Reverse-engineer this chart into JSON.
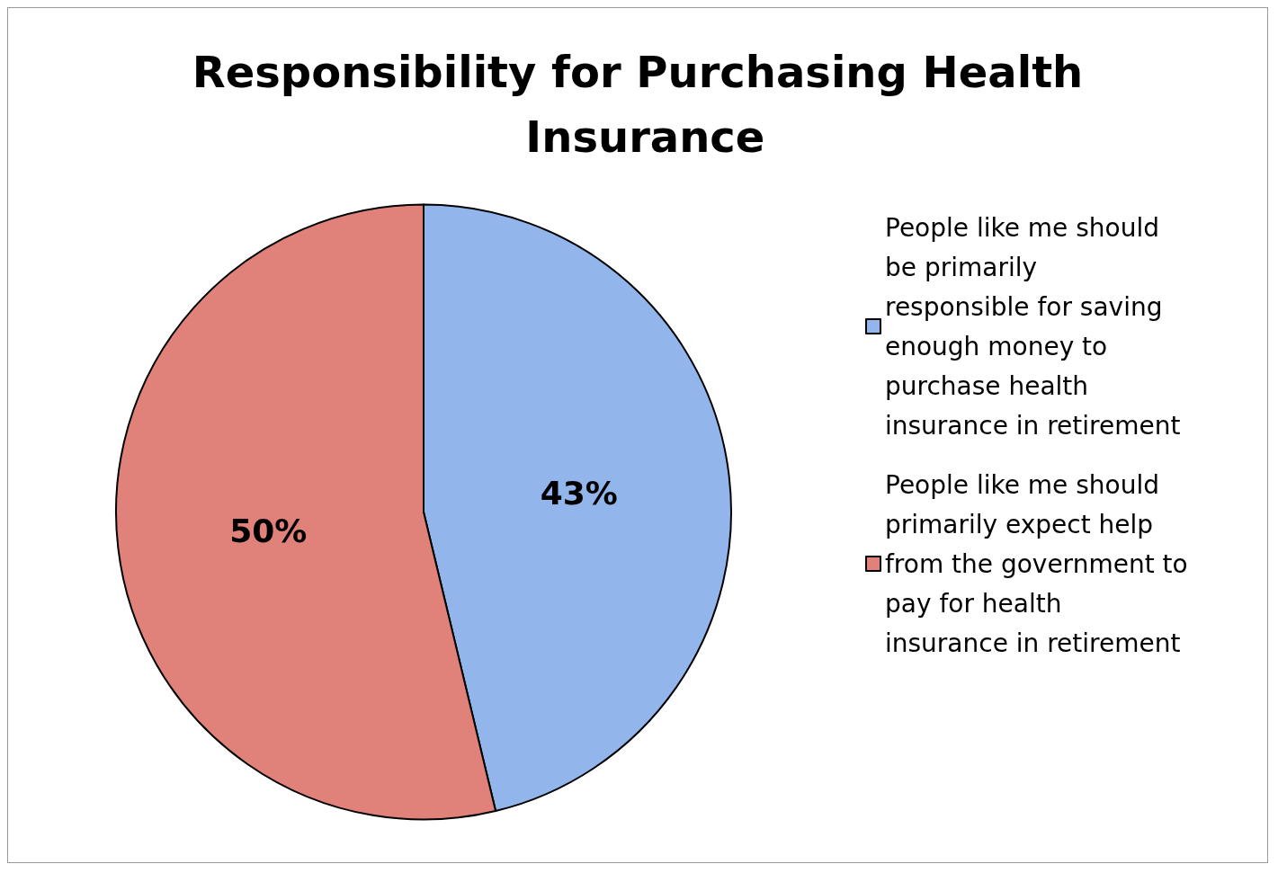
{
  "chart_data": {
    "type": "pie",
    "title": "Responsibility for Purchasing Health Insurance",
    "categories": [
      "People like me should be primarily responsible for saving enough money to purchase health insurance in retirement",
      "People like me should primarily expect help from the government to pay for health insurance in retirement"
    ],
    "values": [
      43,
      50
    ],
    "value_labels": [
      "43%",
      "50%"
    ],
    "colors": [
      "#92b5ec",
      "#e0817a"
    ],
    "legend": "right"
  }
}
